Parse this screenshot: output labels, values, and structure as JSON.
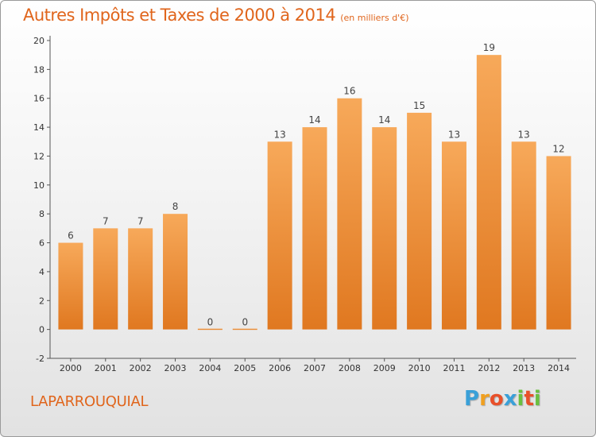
{
  "title": "Autres Impôts et Taxes de 2000 à 2014",
  "title_unit": "(en milliers d'€)",
  "commune": "LAPARROUQUIAL",
  "logo": {
    "letters": [
      "P",
      "r",
      "o",
      "x",
      "i",
      "t",
      "i"
    ],
    "colors": [
      "#3aa0d8",
      "#f0a020",
      "#e8502a",
      "#3aa0d8",
      "#6abf40",
      "#e8502a",
      "#6abf40"
    ]
  },
  "colors": {
    "bar_top": "#f7a95a",
    "bar_bottom": "#e07820",
    "accent": "#e0651c"
  },
  "chart_data": {
    "type": "bar",
    "title": "Autres Impôts et Taxes de 2000 à 2014",
    "categories": [
      "2000",
      "2001",
      "2002",
      "2003",
      "2004",
      "2005",
      "2006",
      "2007",
      "2008",
      "2009",
      "2010",
      "2011",
      "2012",
      "2013",
      "2014"
    ],
    "values": [
      6,
      7,
      7,
      8,
      0,
      0,
      13,
      14,
      16,
      14,
      15,
      13,
      19,
      13,
      12
    ],
    "value_labels": [
      "6",
      "7",
      "7",
      "8",
      "0",
      "0",
      "13",
      "14",
      "16",
      "14",
      "15",
      "13",
      "19",
      "13",
      "12"
    ],
    "y_ticks": [
      "-2",
      "0",
      "2",
      "4",
      "6",
      "8",
      "10",
      "12",
      "14",
      "16",
      "18",
      "20"
    ],
    "ylim": [
      -2,
      20
    ],
    "xlabel": "",
    "ylabel": "",
    "grid": false,
    "legend": "none"
  }
}
